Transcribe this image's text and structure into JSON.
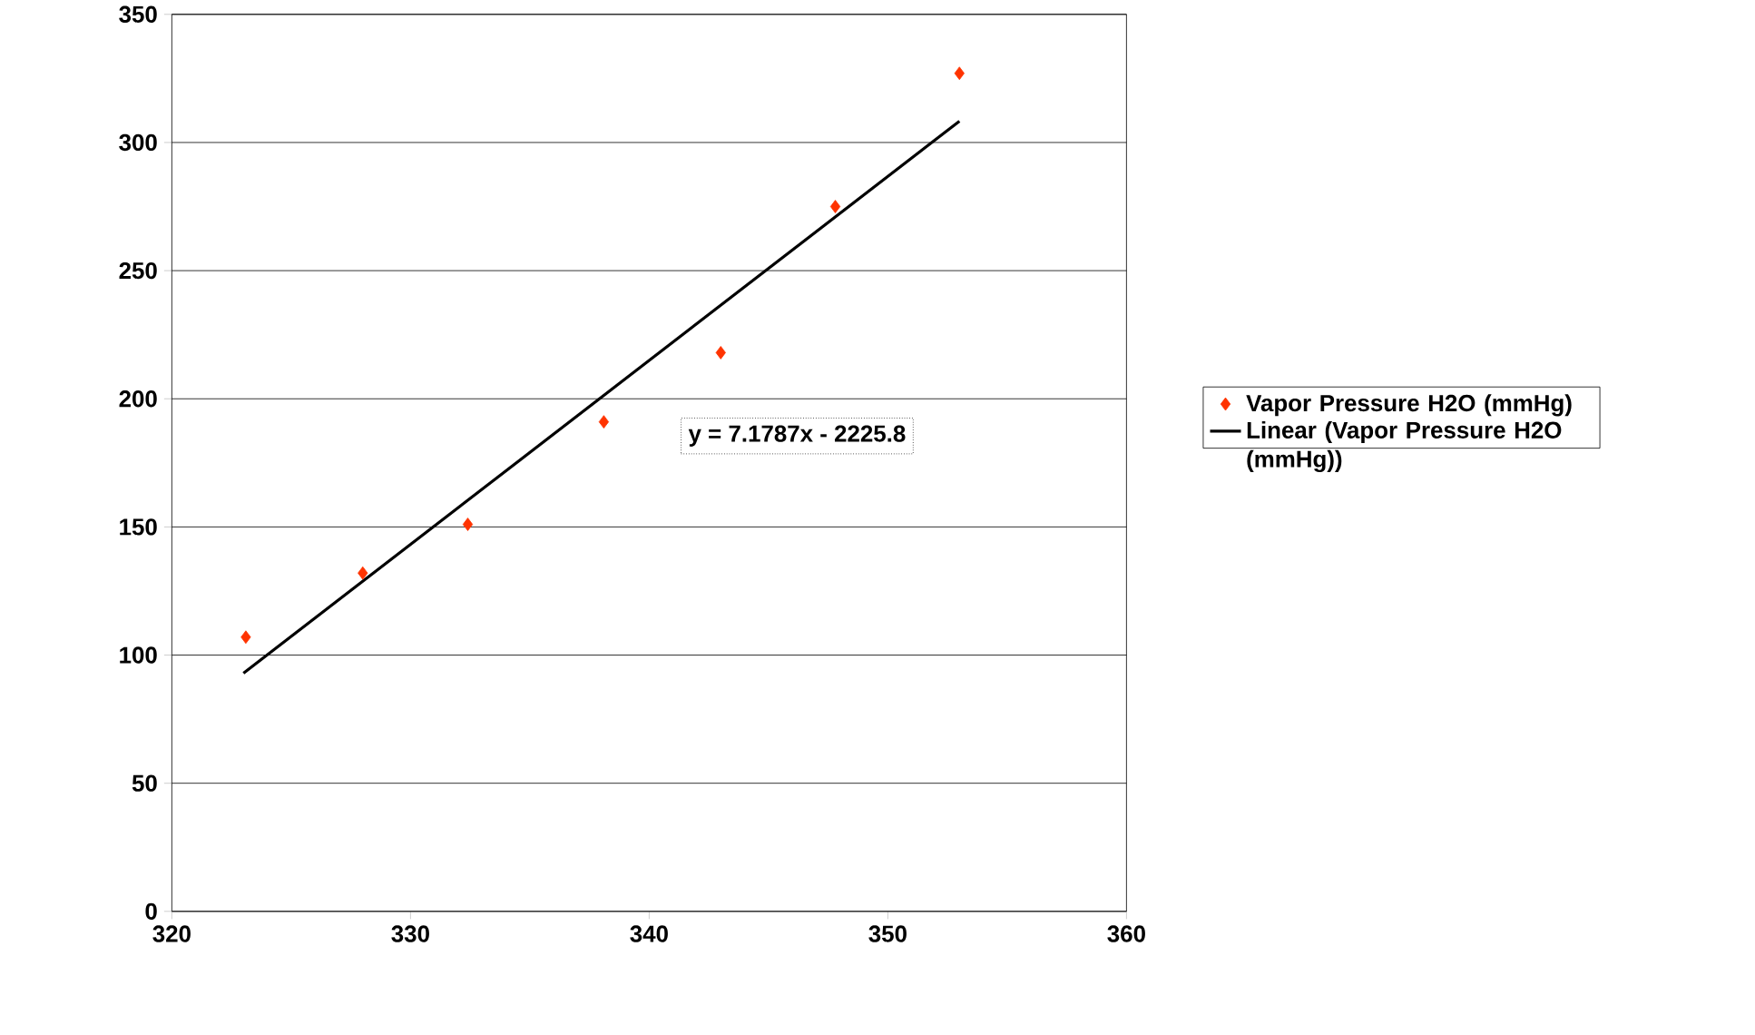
{
  "chart_data": {
    "type": "scatter",
    "series": [
      {
        "name": "Vapor Pressure H2O (mmHg)",
        "color": "#ff3300",
        "marker": "diamond",
        "x": [
          323.1,
          328.0,
          332.4,
          338.1,
          343.0,
          347.8,
          353.0
        ],
        "values": [
          107,
          132,
          151,
          191,
          218,
          275,
          327
        ]
      },
      {
        "name": "Linear (Vapor Pressure H2O (mmHg))",
        "type": "line",
        "color": "#000000",
        "marker": "none",
        "line_style": "solid",
        "x": [
          323,
          353
        ],
        "values": [
          92.9,
          308.3
        ]
      }
    ],
    "annotations": [
      "y = 7.1787x - 2225.8"
    ],
    "xlim": [
      320,
      360
    ],
    "xticks": [
      320,
      330,
      340,
      350,
      360
    ],
    "ylim": [
      0,
      350
    ],
    "yticks": [
      0,
      50,
      100,
      150,
      200,
      250,
      300,
      350
    ],
    "grid": "y",
    "legend": "right"
  }
}
